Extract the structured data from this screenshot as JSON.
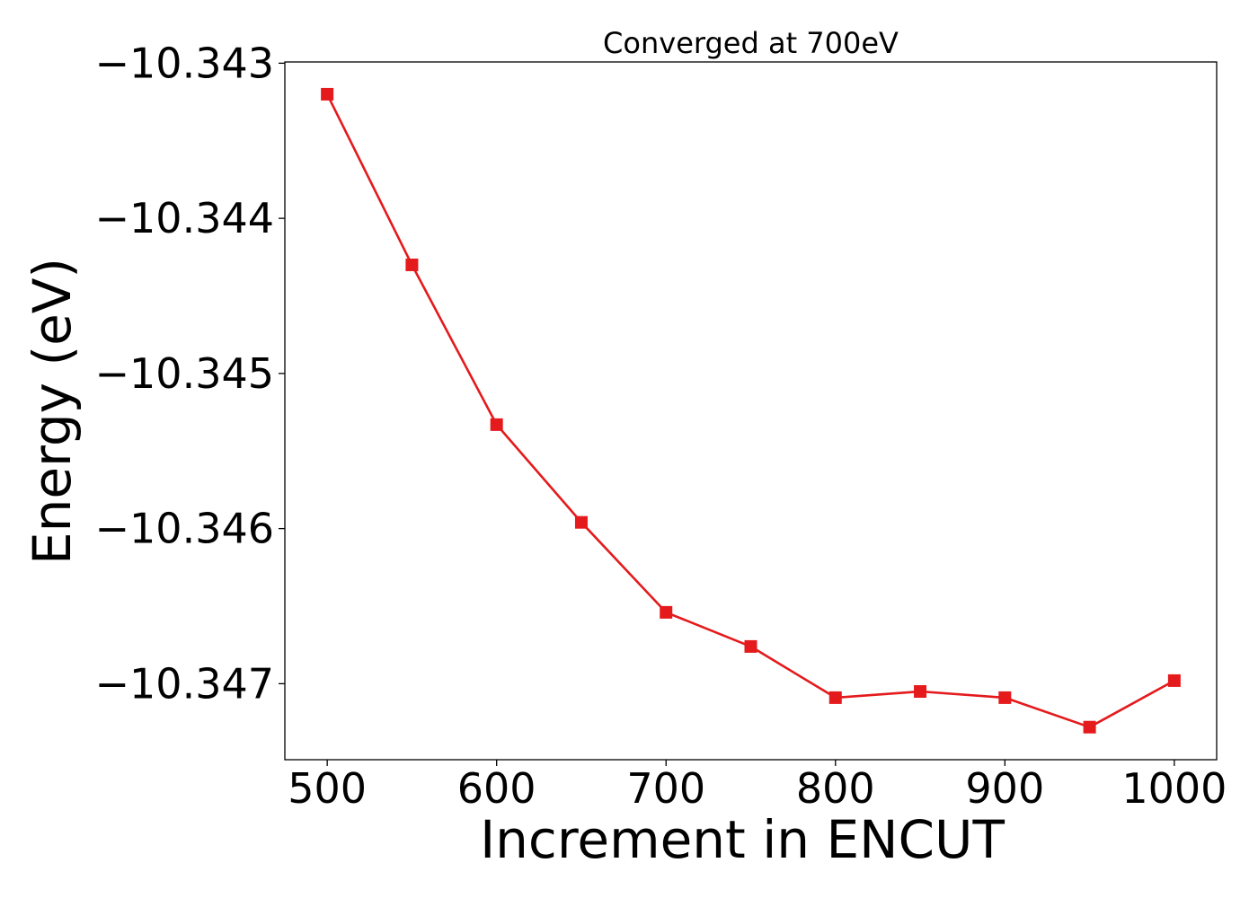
{
  "chart_data": {
    "type": "line",
    "title": "Converged at 700eV",
    "xlabel": "Increment in ENCUT",
    "ylabel": "Energy (eV)",
    "xlim": [
      475,
      1025
    ],
    "ylim": [
      -10.34749,
      -10.342992
    ],
    "xticks": [
      500,
      600,
      700,
      800,
      900,
      1000
    ],
    "xtick_labels": [
      "500",
      "600",
      "700",
      "800",
      "900",
      "1000"
    ],
    "yticks": [
      -10.343,
      -10.344,
      -10.345,
      -10.346,
      -10.347
    ],
    "ytick_labels": [
      "−10.343",
      "−10.344",
      "−10.345",
      "−10.346",
      "−10.347"
    ],
    "grid": false,
    "series": [
      {
        "color": "#e41a1c",
        "marker": "square",
        "x": [
          500,
          550,
          600,
          650,
          700,
          750,
          800,
          850,
          900,
          950,
          1000
        ],
        "y": [
          -10.3432,
          -10.3443,
          -10.34533,
          -10.34596,
          -10.34654,
          -10.34676,
          -10.34709,
          -10.34705,
          -10.34709,
          -10.34728,
          -10.34698
        ]
      }
    ]
  }
}
